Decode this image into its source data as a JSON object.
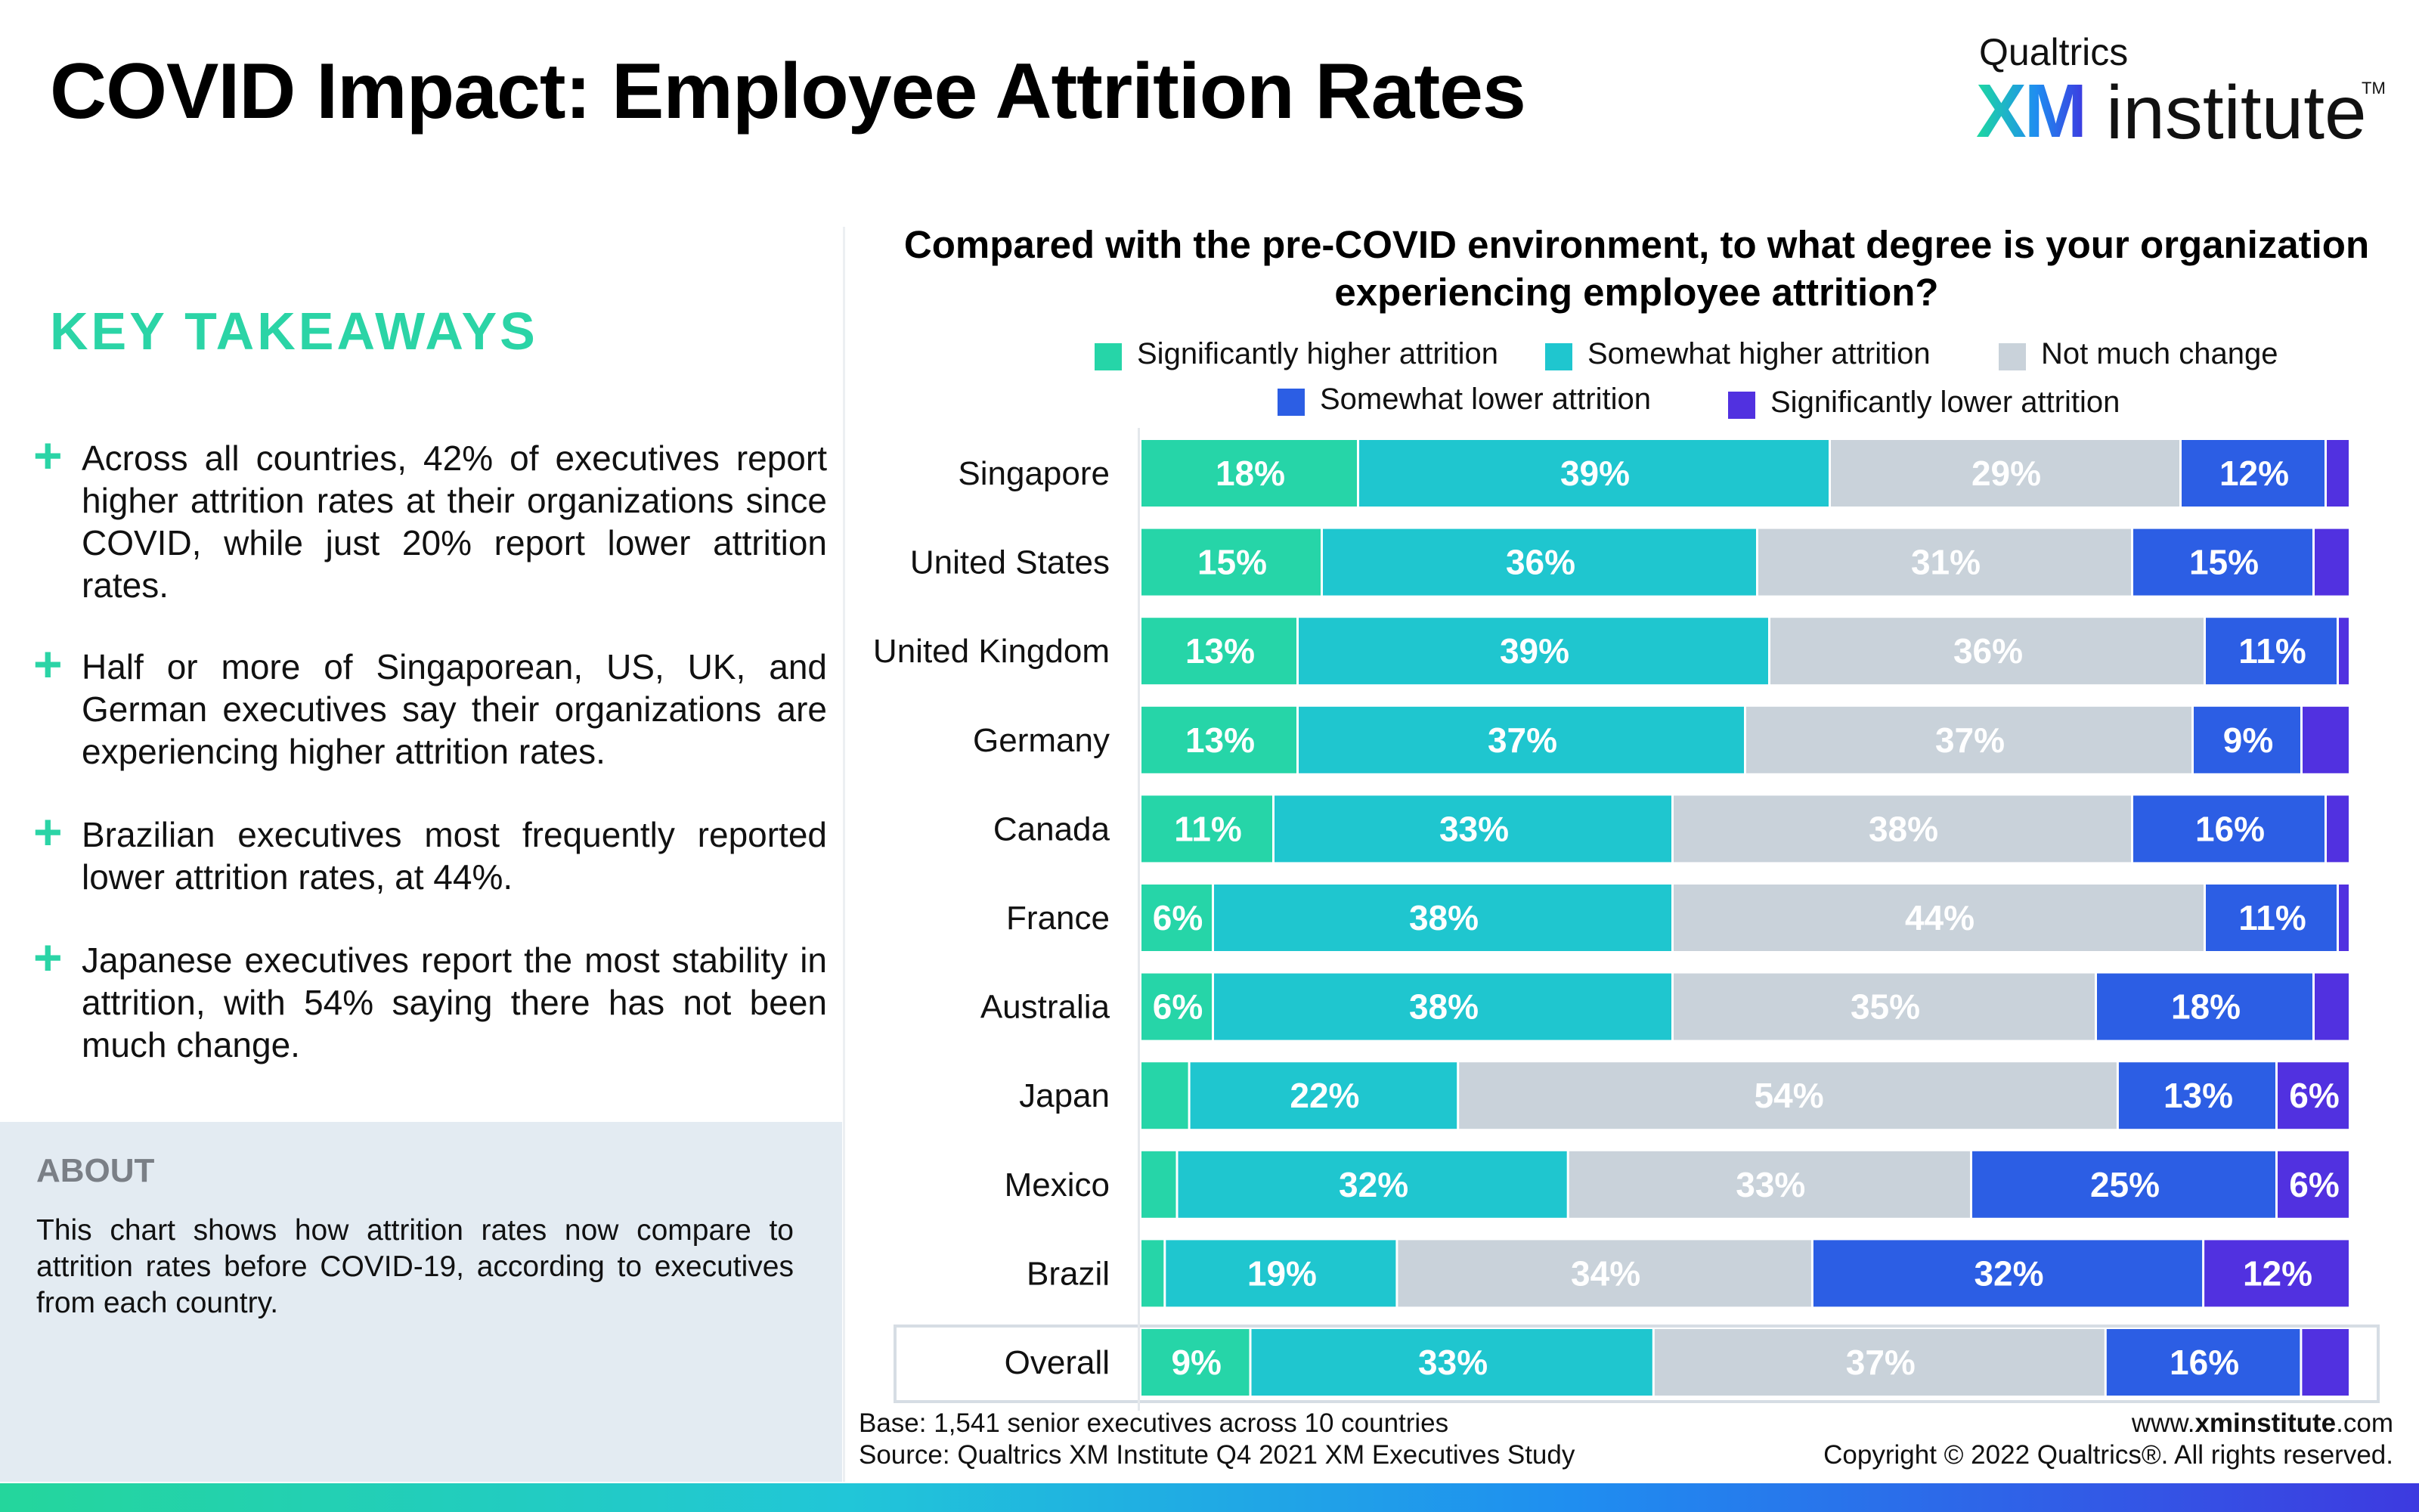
{
  "header": {
    "title": "COVID Impact: Employee Attrition Rates",
    "logo_brand": "Qualtrics",
    "logo_xm": "XM",
    "logo_institute": "institute",
    "logo_tm": "TM"
  },
  "takeaways": {
    "heading": "KEY TAKEAWAYS",
    "icon": "plus-icon",
    "items": [
      "Across all countries, 42% of executives report higher attrition rates at their organizations since COVID, while just 20% report lower attrition rates.",
      "Half or more of Singaporean, US, UK, and German executives say their organizations are experiencing higher attrition rates.",
      "Brazilian executives most frequently reported lower attrition rates, at 44%.",
      "Japanese executives report the most stability in attrition, with 54% saying there has not been much change."
    ]
  },
  "about": {
    "heading": "ABOUT",
    "text": "This chart shows how attrition rates now compare to attrition rates before COVID-19, according to executives from each country."
  },
  "footer": {
    "base": "Base: 1,541 senior executives across 10 countries",
    "source": "Source: Qualtrics XM Institute Q4 2021 XM Executives Study",
    "url_prefix": "www.",
    "url_bold": "xminstitute",
    "url_suffix": ".com",
    "copyright": "Copyright © 2022 Qualtrics®. All rights reserved."
  },
  "colors": {
    "accent": "#2bd4a6",
    "significantly_higher": "#26d5a8",
    "somewhat_higher": "#1fc6cf",
    "not_much_change": "#c9d2da",
    "somewhat_lower": "#2c5ee4",
    "significantly_lower": "#5131e0"
  },
  "chart_data": {
    "type": "bar",
    "orientation": "horizontal",
    "stacked": true,
    "title": "Compared with the pre-COVID environment, to what degree is your organization experiencing employee attrition?",
    "categories": [
      "Singapore",
      "United States",
      "United Kingdom",
      "Germany",
      "Canada",
      "France",
      "Australia",
      "Japan",
      "Mexico",
      "Brazil",
      "Overall"
    ],
    "highlighted_category": "Overall",
    "xlim": [
      0,
      100
    ],
    "legend_position": "top",
    "series": [
      {
        "name": "Significantly higher attrition",
        "color": "#26d5a8",
        "values": [
          18,
          15,
          13,
          13,
          11,
          6,
          6,
          4,
          3,
          2,
          9
        ],
        "labels": [
          "18%",
          "15%",
          "13%",
          "13%",
          "11%",
          "6%",
          "6%",
          "",
          "",
          "",
          "9%"
        ]
      },
      {
        "name": "Somewhat higher attrition",
        "color": "#1fc6cf",
        "values": [
          39,
          36,
          39,
          37,
          33,
          38,
          38,
          22,
          32,
          19,
          33
        ],
        "labels": [
          "39%",
          "36%",
          "39%",
          "37%",
          "33%",
          "38%",
          "38%",
          "22%",
          "32%",
          "19%",
          "33%"
        ]
      },
      {
        "name": "Not much change",
        "color": "#c9d2da",
        "values": [
          29,
          31,
          36,
          37,
          38,
          44,
          35,
          54,
          33,
          34,
          37
        ],
        "labels": [
          "29%",
          "31%",
          "36%",
          "37%",
          "38%",
          "44%",
          "35%",
          "54%",
          "33%",
          "34%",
          "37%"
        ]
      },
      {
        "name": "Somewhat lower attrition",
        "color": "#2c5ee4",
        "values": [
          12,
          15,
          11,
          9,
          16,
          11,
          18,
          13,
          25,
          32,
          16
        ],
        "labels": [
          "12%",
          "15%",
          "11%",
          "9%",
          "16%",
          "11%",
          "18%",
          "13%",
          "25%",
          "32%",
          "16%"
        ]
      },
      {
        "name": "Significantly lower attrition",
        "color": "#5131e0",
        "values": [
          2,
          3,
          1,
          4,
          2,
          1,
          3,
          6,
          6,
          12,
          4
        ],
        "labels": [
          "",
          "",
          "",
          "",
          "",
          "",
          "",
          "6%",
          "6%",
          "12%",
          ""
        ]
      }
    ]
  }
}
